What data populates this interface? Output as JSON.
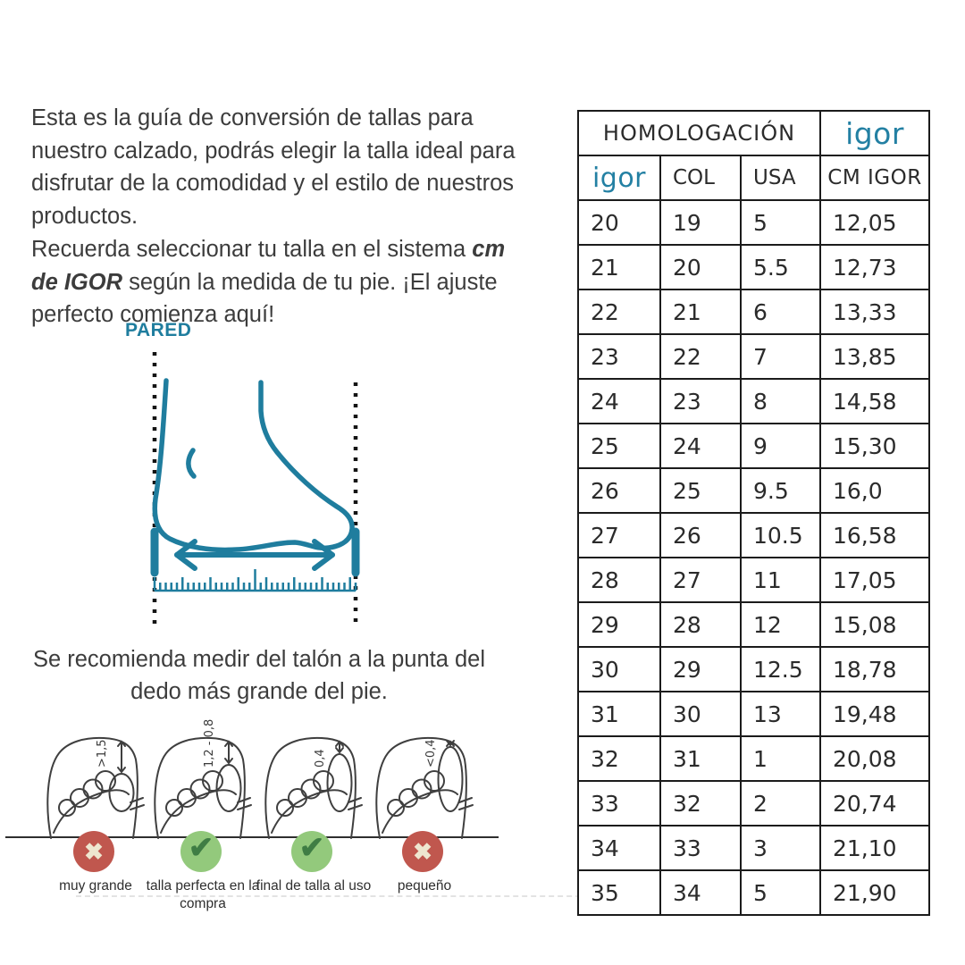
{
  "colors": {
    "accent_teal": "#1f7d9e",
    "bad_red": "#c0574e",
    "good_green_light": "#93c97c",
    "good_green_dark": "#3f7d44",
    "table_border": "#1b1b1b"
  },
  "intro": {
    "paragraph1": "Esta es la guía de conversión de tallas para nuestro calzado, podrás elegir la talla ideal para disfrutar de la comodidad y el estilo de nuestros productos.",
    "paragraph2_prefix": "Recuerda seleccionar tu talla en el sistema ",
    "paragraph2_bold": "cm de IGOR",
    "paragraph2_suffix": " según la medida de tu pie. ¡El ajuste perfecto comienza aquí!"
  },
  "diagram": {
    "wall_label": "PARED"
  },
  "caption": "Se recomienda medir del talón a la punta del dedo más grande del pie.",
  "fit_guide": [
    {
      "annotation": ">1,5",
      "verdict": "bad",
      "label": "muy grande"
    },
    {
      "annotation": "1,2 - 0,8",
      "verdict": "good",
      "label": "talla perfecta en la compra"
    },
    {
      "annotation": "0,4",
      "verdict": "good",
      "label": "final de talla al uso"
    },
    {
      "annotation": "<0,4",
      "verdict": "bad",
      "label": "pequeño"
    }
  ],
  "table": {
    "title": "HOMOLOGACIÓN",
    "brand": "igor",
    "headers": [
      "igor",
      "COL",
      "USA",
      "CM IGOR"
    ],
    "rows": [
      [
        "20",
        "19",
        "5",
        "12,05"
      ],
      [
        "21",
        "20",
        "5.5",
        "12,73"
      ],
      [
        "22",
        "21",
        "6",
        "13,33"
      ],
      [
        "23",
        "22",
        "7",
        "13,85"
      ],
      [
        "24",
        "23",
        "8",
        "14,58"
      ],
      [
        "25",
        "24",
        "9",
        "15,30"
      ],
      [
        "26",
        "25",
        "9.5",
        "16,0"
      ],
      [
        "27",
        "26",
        "10.5",
        "16,58"
      ],
      [
        "28",
        "27",
        "11",
        "17,05"
      ],
      [
        "29",
        "28",
        "12",
        "15,08"
      ],
      [
        "30",
        "29",
        "12.5",
        "18,78"
      ],
      [
        "31",
        "30",
        "13",
        "19,48"
      ],
      [
        "32",
        "31",
        "1",
        "20,08"
      ],
      [
        "33",
        "32",
        "2",
        "20,74"
      ],
      [
        "34",
        "33",
        "3",
        "21,10"
      ],
      [
        "35",
        "34",
        "5",
        "21,90"
      ]
    ]
  }
}
